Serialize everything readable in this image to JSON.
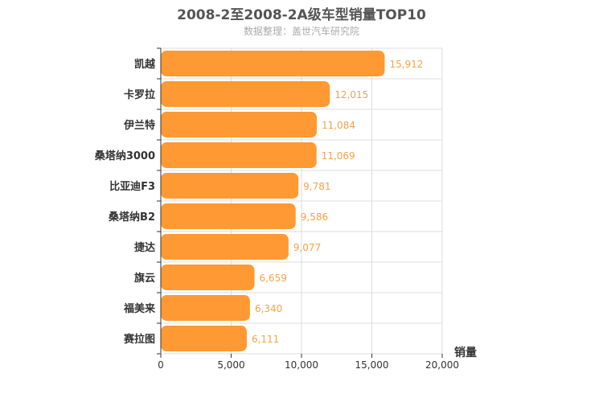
{
  "chart_data": {
    "type": "bar",
    "orientation": "horizontal",
    "title": "2008-2至2008-2A级车型销量TOP10",
    "subtitle": "数据整理：盖世汽车研究院",
    "categories": [
      "凯越",
      "卡罗拉",
      "伊兰特",
      "桑塔纳3000",
      "比亚迪F3",
      "桑塔纳B2",
      "捷达",
      "旗云",
      "福美来",
      "赛拉图"
    ],
    "values": [
      15912,
      12015,
      11084,
      11069,
      9781,
      9586,
      9077,
      6659,
      6340,
      6111
    ],
    "value_labels": [
      "15,912",
      "12,015",
      "11,084",
      "11,069",
      "9,781",
      "9,586",
      "9,077",
      "6,659",
      "6,340",
      "6,111"
    ],
    "xlabel": "销量",
    "ylabel": "",
    "xlim": [
      0,
      20000
    ],
    "ticks": [
      0,
      5000,
      10000,
      15000,
      20000
    ],
    "tick_labels": [
      "0",
      "5,000",
      "10,000",
      "15,000",
      "20,000"
    ],
    "grid": true,
    "bar_color": "#ff9933"
  }
}
